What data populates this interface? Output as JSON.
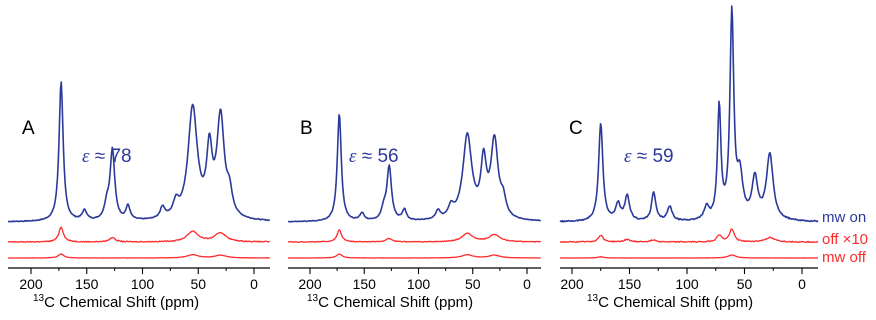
{
  "chart_data": {
    "type": "line",
    "xlabel_sup": "13",
    "xlabel": "C Chemical Shift (ppm)",
    "x_reversed": true,
    "legend": [
      {
        "name": "mw on",
        "color": "#2b3a9a"
      },
      {
        "name": "off ×10",
        "color": "#ff2a2a"
      },
      {
        "name": "mw off",
        "color": "#ff2a2a"
      }
    ],
    "panels": [
      {
        "letter": "A",
        "annotation_symbol": "ε",
        "annotation_value": " ≈ 78",
        "xlim": [
          210,
          -15
        ],
        "xticks": [
          200,
          150,
          100,
          50,
          0
        ],
        "series": [
          {
            "name": "mw on",
            "color": "#2b3a9a",
            "peaks": [
              [
                173,
                1.0,
                2.2
              ],
              [
                152,
                0.07,
                2.5
              ],
              [
                127,
                0.5,
                2.5
              ],
              [
                132,
                0.1,
                2.5
              ],
              [
                113,
                0.1,
                2.2
              ],
              [
                82,
                0.08,
                2.5
              ],
              [
                70,
                0.1,
                3
              ],
              [
                55,
                0.8,
                5
              ],
              [
                40,
                0.45,
                3
              ],
              [
                30,
                0.72,
                4
              ],
              [
                22,
                0.15,
                3
              ]
            ]
          },
          {
            "name": "off ×10",
            "color": "#ff2a2a",
            "peaks": [
              [
                173,
                1.0,
                2.5
              ],
              [
                127,
                0.3,
                3
              ],
              [
                55,
                0.7,
                6
              ],
              [
                30,
                0.6,
                6
              ]
            ]
          },
          {
            "name": "mw off",
            "color": "#ff2a2a",
            "peaks": [
              [
                173,
                1.0,
                3
              ],
              [
                55,
                0.8,
                6
              ],
              [
                30,
                0.7,
                6
              ]
            ]
          }
        ]
      },
      {
        "letter": "B",
        "annotation_symbol": "ε",
        "annotation_value": " ≈ 56",
        "xlim": [
          210,
          -15
        ],
        "xticks": [
          200,
          150,
          100,
          50,
          0
        ],
        "series": [
          {
            "name": "mw on",
            "color": "#2b3a9a",
            "peaks": [
              [
                173,
                1.0,
                2.2
              ],
              [
                152,
                0.07,
                2.5
              ],
              [
                127,
                0.5,
                2.5
              ],
              [
                132,
                0.1,
                2.5
              ],
              [
                113,
                0.1,
                2.2
              ],
              [
                82,
                0.08,
                2.5
              ],
              [
                70,
                0.1,
                3
              ],
              [
                55,
                0.78,
                5
              ],
              [
                40,
                0.5,
                3
              ],
              [
                30,
                0.72,
                4
              ],
              [
                22,
                0.15,
                3
              ]
            ]
          },
          {
            "name": "off ×10",
            "color": "#ff2a2a",
            "peaks": [
              [
                173,
                1.0,
                2.5
              ],
              [
                127,
                0.3,
                3
              ],
              [
                55,
                0.7,
                6
              ],
              [
                30,
                0.6,
                6
              ]
            ]
          },
          {
            "name": "mw off",
            "color": "#ff2a2a",
            "peaks": [
              [
                173,
                1.0,
                3
              ],
              [
                55,
                0.8,
                6
              ],
              [
                30,
                0.7,
                6
              ]
            ]
          }
        ]
      },
      {
        "letter": "C",
        "annotation_symbol": "ε",
        "annotation_value": " ≈ 59",
        "xlim": [
          210,
          -15
        ],
        "xticks": [
          200,
          150,
          100,
          50,
          0
        ],
        "series": [
          {
            "name": "mw on",
            "color": "#2b3a9a",
            "peaks": [
              [
                175,
                0.48,
                2.2
              ],
              [
                160,
                0.08,
                2.5
              ],
              [
                152,
                0.12,
                2.5
              ],
              [
                129,
                0.14,
                2.2
              ],
              [
                115,
                0.07,
                2.5
              ],
              [
                83,
                0.06,
                2.5
              ],
              [
                72,
                0.55,
                1.8
              ],
              [
                61,
                1.0,
                2.0
              ],
              [
                54,
                0.2,
                3
              ],
              [
                41,
                0.2,
                3
              ],
              [
                28,
                0.32,
                3.5
              ]
            ]
          },
          {
            "name": "off ×10",
            "color": "#ff2a2a",
            "peaks": [
              [
                175,
                0.4,
                2.5
              ],
              [
                152,
                0.15,
                3
              ],
              [
                129,
                0.12,
                3
              ],
              [
                72,
                0.4,
                2.5
              ],
              [
                61,
                0.75,
                2.5
              ],
              [
                28,
                0.25,
                5
              ]
            ]
          },
          {
            "name": "mw off",
            "color": "#ff2a2a",
            "peaks": [
              [
                61,
                1.0,
                4
              ],
              [
                175,
                0.4,
                3
              ]
            ]
          }
        ]
      }
    ]
  }
}
